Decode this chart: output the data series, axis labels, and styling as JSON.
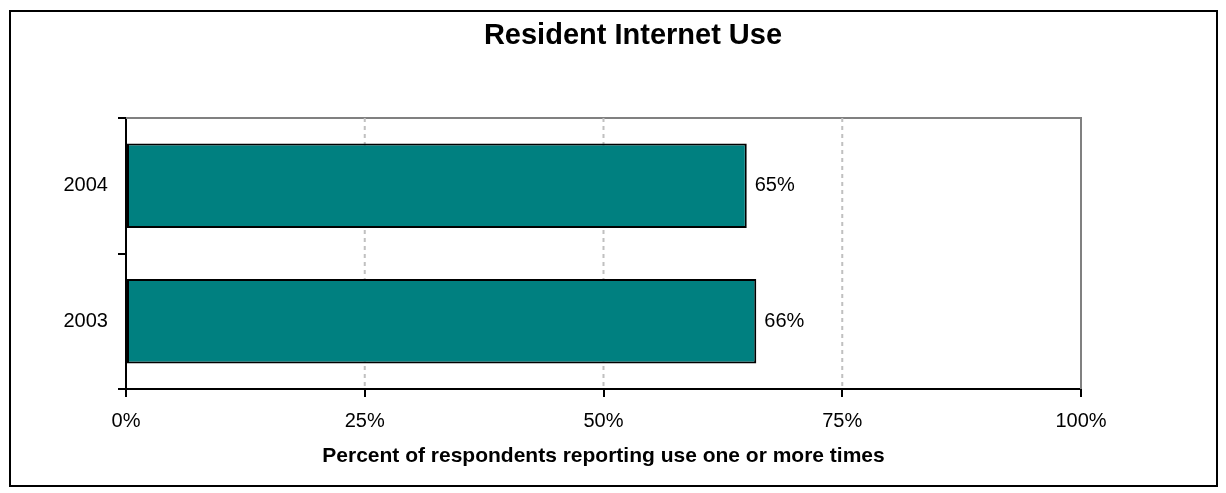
{
  "chart_data": {
    "type": "bar",
    "orientation": "horizontal",
    "title": "Resident Internet Use",
    "xlabel": "Percent of respondents reporting use one or more times",
    "categories": [
      "2004",
      "2003"
    ],
    "values": [
      65,
      66
    ],
    "value_labels": [
      "65%",
      "66%"
    ],
    "color": "#008080",
    "xlim": [
      0,
      100
    ],
    "xticks": [
      {
        "value": 0,
        "label": "0%"
      },
      {
        "value": 25,
        "label": "25%"
      },
      {
        "value": 50,
        "label": "50%"
      },
      {
        "value": 75,
        "label": "75%"
      },
      {
        "value": 100,
        "label": "100%"
      }
    ],
    "grid": "x"
  }
}
